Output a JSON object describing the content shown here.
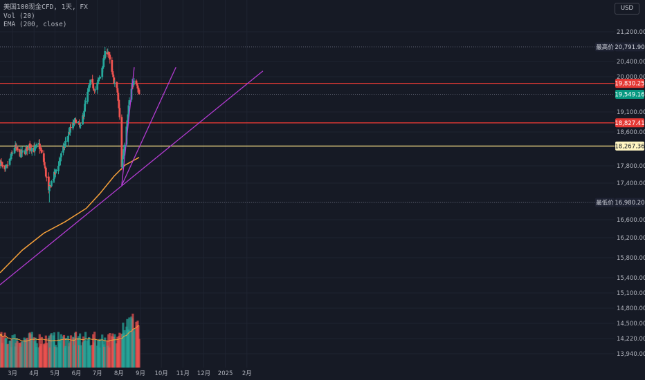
{
  "header": {
    "symbol_line": "美国100现金CFD, 1天, FX",
    "vol_line": "Vol (20)",
    "ema_line": "EMA (200, close)"
  },
  "currency_button": "USD",
  "colors": {
    "background": "#161a25",
    "up": "#26a69a",
    "down": "#ef5350",
    "ema": "#f7a13a",
    "trendline": "#b23bd1",
    "grid": "#1f2431",
    "axis_text": "#b2b5be",
    "level_red": "#e53935",
    "level_yellow": "#ffe58a"
  },
  "chart_data": {
    "type": "candlestick",
    "timeframe": "1天",
    "y_axis": {
      "ticks": [
        "21,200.00",
        "20,400.00",
        "20,000.00",
        "19,100.00",
        "18,600.00",
        "17,800.00",
        "17,400.00",
        "16,600.00",
        "16,200.00",
        "15,800.00",
        "15,400.00",
        "15,100.00",
        "14,800.00",
        "14,500.00",
        "14,220.00",
        "13,940.00"
      ]
    },
    "x_axis": {
      "ticks": [
        "3月",
        "4月",
        "5月",
        "6月",
        "7月",
        "8月",
        "9月",
        "10月",
        "11月",
        "12月",
        "2025",
        "2月"
      ]
    },
    "price_labels": [
      {
        "name": "最高价",
        "value": "20,791.90",
        "style": "marker"
      },
      {
        "name": "",
        "value": "19,830.25",
        "style": "red"
      },
      {
        "name": "",
        "value": "19,549.16",
        "style": "green"
      },
      {
        "name": "",
        "value": "18,827.41",
        "style": "red"
      },
      {
        "name": "",
        "value": "18,267.36",
        "style": "yellow"
      },
      {
        "name": "最低价",
        "value": "16,980.20",
        "style": "marker"
      }
    ],
    "horizontal_levels": [
      {
        "value": 19830.25,
        "color": "red"
      },
      {
        "value": 18827.41,
        "color": "red"
      },
      {
        "value": 18267.36,
        "color": "yellow"
      }
    ],
    "last_price": 19549.16,
    "high": 20791.9,
    "low": 16980.2,
    "close_path": [
      {
        "date": "2024-02-12",
        "close": 17900
      },
      {
        "date": "2024-02-19",
        "close": 17650
      },
      {
        "date": "2024-02-26",
        "close": 17930
      },
      {
        "date": "2024-03-04",
        "close": 18250
      },
      {
        "date": "2024-03-11",
        "close": 18080
      },
      {
        "date": "2024-03-18",
        "close": 18120
      },
      {
        "date": "2024-03-25",
        "close": 18280
      },
      {
        "date": "2024-04-01",
        "close": 18180
      },
      {
        "date": "2024-04-08",
        "close": 18300
      },
      {
        "date": "2024-04-15",
        "close": 17900
      },
      {
        "date": "2024-04-22",
        "close": 17200
      },
      {
        "date": "2024-04-26",
        "close": 17430
      },
      {
        "date": "2024-05-03",
        "close": 17700
      },
      {
        "date": "2024-05-10",
        "close": 18050
      },
      {
        "date": "2024-05-17",
        "close": 18400
      },
      {
        "date": "2024-05-24",
        "close": 18700
      },
      {
        "date": "2024-05-31",
        "close": 18900
      },
      {
        "date": "2024-06-07",
        "close": 18700
      },
      {
        "date": "2024-06-14",
        "close": 19350
      },
      {
        "date": "2024-06-21",
        "close": 19850
      },
      {
        "date": "2024-06-28",
        "close": 19680
      },
      {
        "date": "2024-07-05",
        "close": 20000
      },
      {
        "date": "2024-07-12",
        "close": 20600
      },
      {
        "date": "2024-07-16",
        "close": 20700
      },
      {
        "date": "2024-07-23",
        "close": 20000
      },
      {
        "date": "2024-07-30",
        "close": 19600
      },
      {
        "date": "2024-08-02",
        "close": 18950
      },
      {
        "date": "2024-08-05",
        "close": 17800
      },
      {
        "date": "2024-08-09",
        "close": 18350
      },
      {
        "date": "2024-08-16",
        "close": 19400
      },
      {
        "date": "2024-08-21",
        "close": 19850
      },
      {
        "date": "2024-08-26",
        "close": 19800
      },
      {
        "date": "2024-08-30",
        "close": 19549
      }
    ],
    "ema200_path": [
      {
        "date": "2024-02-12",
        "value": 15500
      },
      {
        "date": "2024-03-15",
        "value": 15950
      },
      {
        "date": "2024-04-15",
        "value": 16300
      },
      {
        "date": "2024-05-15",
        "value": 16550
      },
      {
        "date": "2024-06-15",
        "value": 16850
      },
      {
        "date": "2024-07-05",
        "value": 17180
      },
      {
        "date": "2024-07-25",
        "value": 17560
      },
      {
        "date": "2024-08-10",
        "value": 17820
      },
      {
        "date": "2024-08-30",
        "value": 18000
      }
    ],
    "trendlines": [
      {
        "from": {
          "date": "2024-02-12",
          "value": 15260
        },
        "to": {
          "date": "2025-02-24",
          "value": 20150
        }
      },
      {
        "from": {
          "date": "2024-08-05",
          "value": 17350
        },
        "to": {
          "date": "2024-10-22",
          "value": 20250
        }
      },
      {
        "from": {
          "date": "2024-08-05",
          "value": 17350
        },
        "to": {
          "date": "2024-08-23",
          "value": 20250
        }
      }
    ],
    "volume": {
      "label": "Vol (20)"
    }
  }
}
